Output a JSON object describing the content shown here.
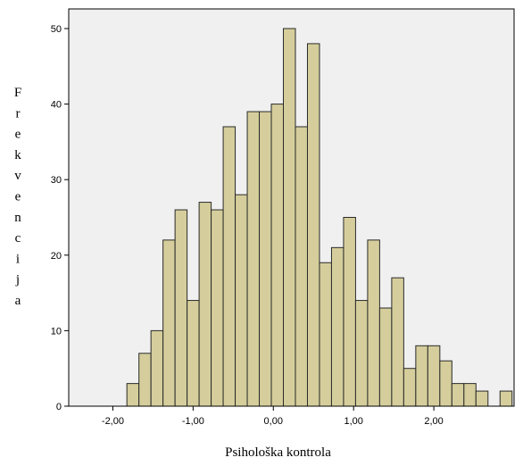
{
  "chart_data": {
    "type": "bar",
    "title": "",
    "xlabel": "Psihološka kontrola",
    "ylabel": "Frekvencija",
    "ylim": [
      0,
      50
    ],
    "yticks": [
      0,
      10,
      20,
      30,
      40,
      50
    ],
    "xticks": [
      -2.0,
      -1.0,
      0.0,
      1.0,
      2.0
    ],
    "xtick_labels": [
      "-2,00",
      "-1,00",
      "0,00",
      "1,00",
      "2,00"
    ],
    "bin_width": 0.15,
    "bins": [
      {
        "x": -1.75,
        "value": 3
      },
      {
        "x": -1.6,
        "value": 7
      },
      {
        "x": -1.45,
        "value": 10
      },
      {
        "x": -1.3,
        "value": 22
      },
      {
        "x": -1.15,
        "value": 26
      },
      {
        "x": -1.0,
        "value": 14
      },
      {
        "x": -0.85,
        "value": 27
      },
      {
        "x": -0.7,
        "value": 26
      },
      {
        "x": -0.55,
        "value": 37
      },
      {
        "x": -0.4,
        "value": 28
      },
      {
        "x": -0.25,
        "value": 39
      },
      {
        "x": -0.1,
        "value": 39
      },
      {
        "x": 0.05,
        "value": 40
      },
      {
        "x": 0.2,
        "value": 50
      },
      {
        "x": 0.35,
        "value": 37
      },
      {
        "x": 0.5,
        "value": 48
      },
      {
        "x": 0.65,
        "value": 19
      },
      {
        "x": 0.8,
        "value": 21
      },
      {
        "x": 0.95,
        "value": 25
      },
      {
        "x": 1.1,
        "value": 14
      },
      {
        "x": 1.25,
        "value": 22
      },
      {
        "x": 1.4,
        "value": 13
      },
      {
        "x": 1.55,
        "value": 17
      },
      {
        "x": 1.7,
        "value": 5
      },
      {
        "x": 1.85,
        "value": 8
      },
      {
        "x": 2.0,
        "value": 8
      },
      {
        "x": 2.15,
        "value": 6
      },
      {
        "x": 2.3,
        "value": 3
      },
      {
        "x": 2.45,
        "value": 3
      },
      {
        "x": 2.6,
        "value": 2
      },
      {
        "x": 2.9,
        "value": 2
      }
    ],
    "grid": false,
    "colors": {
      "bar": "#D5CE9C",
      "bar_edge": "#2a2a2a",
      "plot_bg": "#F0F0F0"
    }
  }
}
